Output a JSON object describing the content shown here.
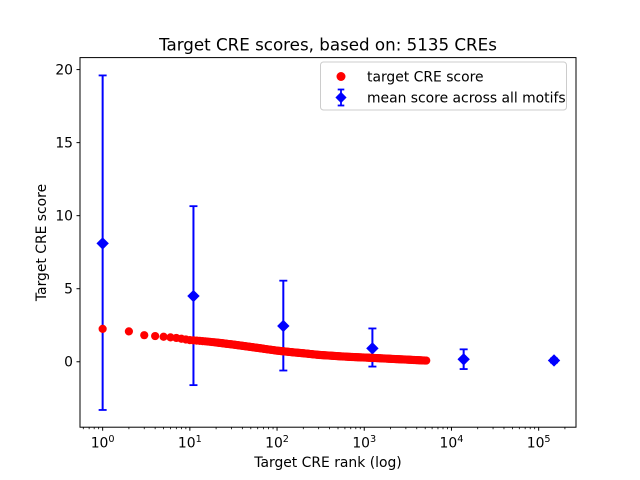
{
  "figure": {
    "background": "#ffffff"
  },
  "chart_data": {
    "type": "scatter",
    "title": "Target CRE scores, based on: 5135 CREs",
    "xlabel": "Target CRE rank (log)",
    "ylabel": "Target CRE score",
    "x_scale": "log",
    "y_scale": "linear",
    "xlim": [
      0.55,
      268000
    ],
    "ylim": [
      -4.48,
      20.82
    ],
    "xticks": [
      1,
      10,
      100,
      1000,
      10000,
      100000
    ],
    "yticks": [
      0,
      5,
      10,
      15,
      20
    ],
    "grid": false,
    "frame_color": "#000000",
    "legend": {
      "position": "upper-right",
      "border_color": "#cccccc",
      "background": "#ffffff"
    },
    "series": [
      {
        "name": "target CRE score",
        "marker": "circle",
        "color": "#ff0000",
        "n_points": 5135,
        "rank_range": [
          1,
          5135
        ],
        "curve_anchors": [
          [
            1,
            2.25
          ],
          [
            2,
            2.08
          ],
          [
            3,
            1.82
          ],
          [
            4,
            1.76
          ],
          [
            5,
            1.71
          ],
          [
            7,
            1.63
          ],
          [
            10,
            1.48
          ],
          [
            15,
            1.4
          ],
          [
            20,
            1.32
          ],
          [
            30,
            1.19
          ],
          [
            50,
            1.01
          ],
          [
            70,
            0.89
          ],
          [
            100,
            0.76
          ],
          [
            150,
            0.65
          ],
          [
            200,
            0.58
          ],
          [
            300,
            0.47
          ],
          [
            500,
            0.38
          ],
          [
            700,
            0.33
          ],
          [
            1000,
            0.29
          ],
          [
            1500,
            0.24
          ],
          [
            2000,
            0.2
          ],
          [
            3000,
            0.15
          ],
          [
            4000,
            0.11
          ],
          [
            5135,
            0.08
          ]
        ]
      },
      {
        "name": "mean score across all motifs",
        "marker": "diamond",
        "color": "#0000ff",
        "points": [
          {
            "x": 1,
            "y": 8.1,
            "ylo": -3.3,
            "yhi": 19.6
          },
          {
            "x": 11,
            "y": 4.5,
            "ylo": -1.6,
            "yhi": 10.65
          },
          {
            "x": 118,
            "y": 2.45,
            "ylo": -0.6,
            "yhi": 5.55
          },
          {
            "x": 1240,
            "y": 0.92,
            "ylo": -0.33,
            "yhi": 2.28
          },
          {
            "x": 13800,
            "y": 0.17,
            "ylo": -0.5,
            "yhi": 0.85
          },
          {
            "x": 150000,
            "y": 0.09,
            "ylo": -0.05,
            "yhi": 0.22
          }
        ]
      }
    ]
  }
}
